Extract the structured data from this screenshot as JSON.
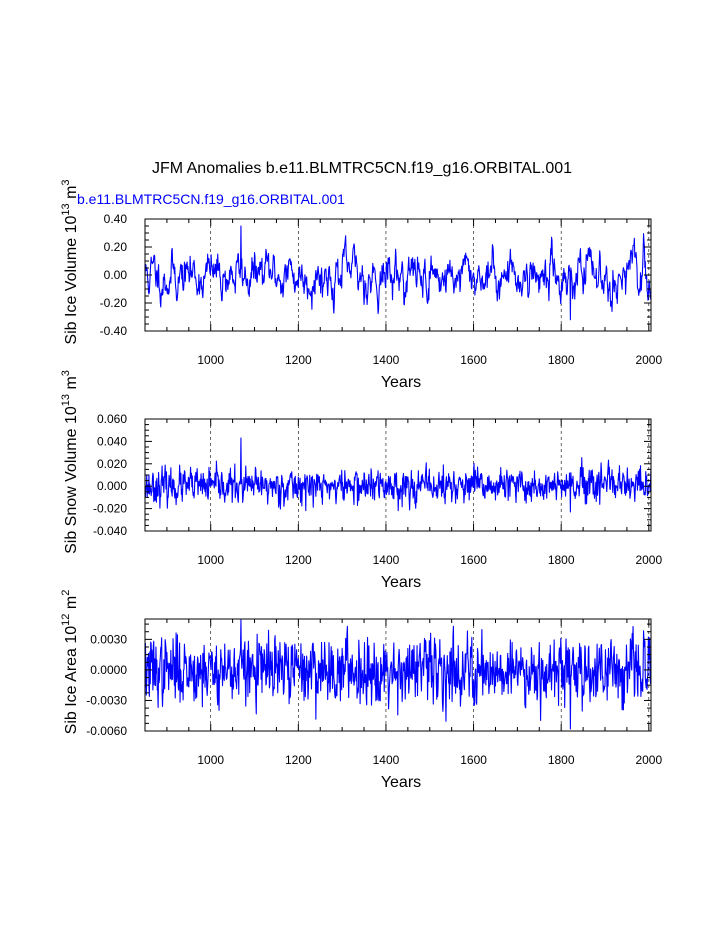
{
  "figure": {
    "title": "JFM Anomalies b.e11.BLMTRC5CN.f19_g16.ORBITAL.001",
    "series_label": "b.e11.BLMTRC5CN.f19_g16.ORBITAL.001",
    "line_color": "#0000ff"
  },
  "chart_data": [
    {
      "type": "line",
      "ylabel_main": "Sib Ice Volume 10",
      "ylabel_exp": "13",
      "ylabel_unit": " m",
      "ylabel_unit_exp": "3",
      "xlabel": "Years",
      "xlim": [
        850,
        2005
      ],
      "ylim": [
        -0.4,
        0.4
      ],
      "xticks": [
        "1000",
        "1200",
        "1400",
        "1600",
        "1800",
        "2000"
      ],
      "xtick_values": [
        1000,
        1200,
        1400,
        1600,
        1800,
        2000
      ],
      "ytick_labels": [
        "0.40",
        "0.20",
        "0.00",
        "-0.20",
        "-0.40"
      ],
      "ytick_values": [
        0.4,
        0.2,
        0.0,
        -0.2,
        -0.4
      ],
      "amplitude": 0.09,
      "peak": 0.35,
      "trough": -0.32,
      "smooth": 0.78,
      "seed": 11,
      "series": [
        {
          "name": "b.e11.BLMTRC5CN.f19_g16.ORBITAL.001",
          "x_start": 850,
          "x_end": 2005
        }
      ]
    },
    {
      "type": "line",
      "ylabel_main": "Sib Snow Volume 10",
      "ylabel_exp": "13",
      "ylabel_unit": " m",
      "ylabel_unit_exp": "3",
      "xlabel": "Years",
      "xlim": [
        850,
        2005
      ],
      "ylim": [
        -0.04,
        0.06
      ],
      "xticks": [
        "1000",
        "1200",
        "1400",
        "1600",
        "1800",
        "2000"
      ],
      "xtick_values": [
        1000,
        1200,
        1400,
        1600,
        1800,
        2000
      ],
      "ytick_labels": [
        "0.060",
        "0.040",
        "0.020",
        "0.000",
        "-0.020",
        "-0.040"
      ],
      "ytick_values": [
        0.06,
        0.04,
        0.02,
        0.0,
        -0.02,
        -0.04
      ],
      "amplitude": 0.0075,
      "peak": 0.043,
      "trough": -0.023,
      "smooth": 0.25,
      "seed": 23,
      "series": [
        {
          "name": "b.e11.BLMTRC5CN.f19_g16.ORBITAL.001",
          "x_start": 850,
          "x_end": 2005
        }
      ]
    },
    {
      "type": "line",
      "ylabel_main": "Sib Ice Area 10",
      "ylabel_exp": "12",
      "ylabel_unit": " m",
      "ylabel_unit_exp": "2",
      "xlabel": "Years",
      "xlim": [
        850,
        2005
      ],
      "ylim": [
        -0.006,
        0.005
      ],
      "xticks": [
        "1000",
        "1200",
        "1400",
        "1600",
        "1800",
        "2000"
      ],
      "xtick_values": [
        1000,
        1200,
        1400,
        1600,
        1800,
        2000
      ],
      "ytick_labels": [
        "0.0030",
        "0.0000",
        "-0.0030",
        "-0.0060"
      ],
      "ytick_values": [
        0.003,
        0.0,
        -0.003,
        -0.006
      ],
      "amplitude": 0.0016,
      "peak": 0.0049,
      "trough": -0.0058,
      "smooth": 0.2,
      "seed": 37,
      "series": [
        {
          "name": "b.e11.BLMTRC5CN.f19_g16.ORBITAL.001",
          "x_start": 850,
          "x_end": 2005
        }
      ]
    }
  ]
}
